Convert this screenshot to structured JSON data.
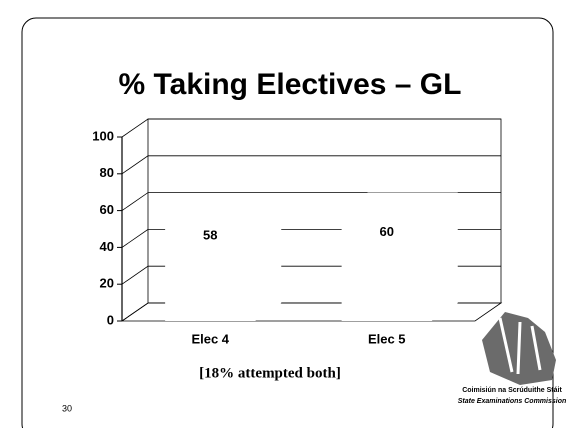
{
  "chart_data": {
    "type": "bar",
    "title": "% Taking Electives – GL",
    "categories": [
      "Elec 4",
      "Elec 5"
    ],
    "values": [
      58,
      60
    ],
    "color": "#ffffff",
    "ylim": [
      0,
      100
    ],
    "yticks": [
      0,
      20,
      40,
      60,
      80,
      100
    ],
    "grid": true,
    "annotation": "[18% attempted both]"
  },
  "footer": {
    "page_number": "30",
    "organisation": [
      "Coimisiún na Scrúduithe Stáit",
      "State Examinations Commission"
    ]
  }
}
